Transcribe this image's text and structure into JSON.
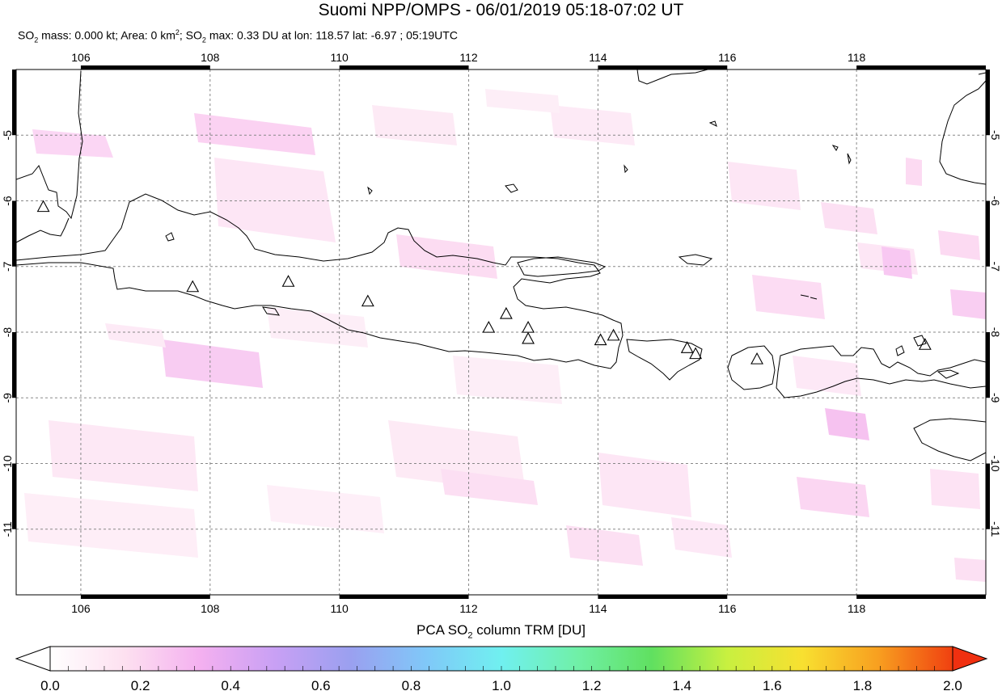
{
  "header": {
    "title": "Suomi NPP/OMPS - 06/01/2019 05:18-07:02 UT",
    "stats_prefix": "SO",
    "stats_sub1": "2",
    "stats_mid1": " mass: 0.000 kt; Area: 0 km",
    "stats_sup": "2",
    "stats_mid2": "; SO",
    "stats_sub2": "2",
    "stats_end": " max: 0.33 DU at lon: 118.57 lat: -6.97 ; 05:19UTC"
  },
  "map": {
    "lon_ticks": [
      "106",
      "108",
      "110",
      "112",
      "114",
      "116",
      "118"
    ],
    "lat_ticks": [
      "-5",
      "-6",
      "-7",
      "-8",
      "-9",
      "-10",
      "-11"
    ],
    "lon_range": [
      105,
      120
    ],
    "lat_range": [
      -12,
      -4
    ],
    "grid": true,
    "volcanoes": [
      {
        "lon": 105.42,
        "lat": -6.1
      },
      {
        "lon": 107.73,
        "lat": -7.32
      },
      {
        "lon": 109.21,
        "lat": -7.24
      },
      {
        "lon": 110.44,
        "lat": -7.54
      },
      {
        "lon": 112.31,
        "lat": -7.94
      },
      {
        "lon": 112.58,
        "lat": -7.73
      },
      {
        "lon": 112.92,
        "lat": -7.94
      },
      {
        "lon": 112.92,
        "lat": -8.11
      },
      {
        "lon": 114.04,
        "lat": -8.13
      },
      {
        "lon": 114.24,
        "lat": -8.06
      },
      {
        "lon": 115.38,
        "lat": -8.25
      },
      {
        "lon": 115.51,
        "lat": -8.34
      },
      {
        "lon": 116.46,
        "lat": -8.42
      },
      {
        "lon": 119.06,
        "lat": -8.2
      }
    ]
  },
  "colorbar": {
    "title_prefix": "PCA SO",
    "title_sub": "2",
    "title_suffix": " column TRM [DU]",
    "labels": [
      "0.0",
      "0.2",
      "0.4",
      "0.6",
      "0.8",
      "1.0",
      "1.2",
      "1.4",
      "1.6",
      "1.8",
      "2.0"
    ],
    "min": 0.0,
    "max": 2.0,
    "colors": [
      "#ffffff",
      "#fde0f0",
      "#f4b0f0",
      "#c8a0f4",
      "#9aa0f0",
      "#80c8f8",
      "#70f0f0",
      "#70f0a8",
      "#60e060",
      "#c8f040",
      "#f8e030",
      "#f8a020",
      "#f04010"
    ]
  }
}
